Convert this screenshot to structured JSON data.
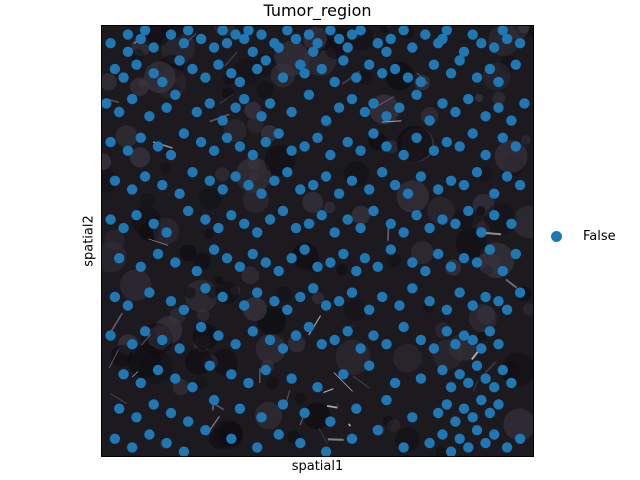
{
  "chart_data": {
    "type": "scatter",
    "title": "Tumor_region",
    "xlabel": "spatial1",
    "ylabel": "spatial2",
    "xlim": [
      0,
      100
    ],
    "ylim": [
      0,
      100
    ],
    "grid": false,
    "axis_ticks": false,
    "background": "tissue image (dark, black/purple with bright white fibers)",
    "legend": {
      "position": "right",
      "entries": [
        "False"
      ]
    },
    "series": [
      {
        "name": "False",
        "color": "#1f77b4",
        "x": [
          2,
          6,
          6,
          9,
          10,
          12,
          16,
          19,
          20,
          23,
          26,
          28,
          29,
          31,
          33,
          34,
          35,
          37,
          40,
          41,
          43,
          45,
          48,
          49,
          50,
          53,
          55,
          57,
          58,
          60,
          64,
          66,
          67,
          70,
          72,
          75,
          78,
          79,
          80,
          84,
          86,
          88,
          91,
          93,
          94,
          97,
          3,
          5,
          8,
          12,
          14,
          18,
          21,
          24,
          27,
          30,
          32,
          36,
          38,
          42,
          46,
          47,
          51,
          54,
          56,
          59,
          62,
          65,
          68,
          71,
          74,
          77,
          81,
          83,
          87,
          90,
          92,
          96,
          1,
          4,
          7,
          11,
          15,
          17,
          22,
          25,
          28,
          31,
          33,
          37,
          39,
          44,
          48,
          52,
          55,
          58,
          61,
          63,
          66,
          69,
          73,
          76,
          79,
          82,
          85,
          89,
          92,
          95,
          98,
          2,
          6,
          9,
          13,
          16,
          19,
          23,
          26,
          29,
          32,
          35,
          38,
          41,
          44,
          47,
          50,
          53,
          57,
          60,
          63,
          66,
          70,
          73,
          77,
          80,
          83,
          86,
          89,
          93,
          96,
          3,
          7,
          10,
          14,
          18,
          21,
          25,
          28,
          31,
          34,
          37,
          40,
          43,
          46,
          49,
          52,
          55,
          58,
          62,
          65,
          68,
          71,
          74,
          78,
          81,
          84,
          87,
          91,
          94,
          97,
          2,
          5,
          8,
          12,
          15,
          20,
          24,
          27,
          30,
          33,
          36,
          39,
          42,
          45,
          48,
          51,
          54,
          57,
          60,
          63,
          67,
          70,
          73,
          76,
          79,
          82,
          85,
          88,
          91,
          95,
          4,
          9,
          13,
          17,
          22,
          26,
          29,
          32,
          35,
          38,
          41,
          44,
          47,
          50,
          53,
          56,
          59,
          61,
          64,
          67,
          72,
          75,
          78,
          81,
          84,
          87,
          90,
          93,
          96,
          3,
          6,
          11,
          16,
          19,
          24,
          28,
          33,
          36,
          40,
          43,
          46,
          49,
          52,
          55,
          58,
          62,
          65,
          69,
          72,
          76,
          80,
          83,
          86,
          89,
          92,
          94,
          97,
          2,
          7,
          10,
          14,
          18,
          23,
          27,
          31,
          35,
          39,
          42,
          45,
          48,
          51,
          54,
          57,
          60,
          63,
          66,
          70,
          74,
          77,
          80,
          82,
          84,
          86,
          88,
          90,
          92,
          5,
          9,
          13,
          17,
          21,
          25,
          30,
          34,
          38,
          44,
          50,
          56,
          62,
          68,
          74,
          79,
          81,
          83,
          85,
          87,
          89,
          91,
          93,
          95,
          4,
          8,
          12,
          16,
          20,
          26,
          32,
          37,
          42,
          47,
          53,
          59,
          66,
          72,
          78,
          80,
          82,
          84,
          86,
          88,
          90,
          92,
          3,
          7,
          11,
          15,
          19,
          24,
          30,
          36,
          41,
          46,
          52,
          58,
          64,
          70,
          76,
          79,
          81,
          83,
          85,
          87,
          89,
          91,
          94,
          97
        ],
        "y": [
          96,
          98,
          94,
          97,
          99,
          95,
          98,
          96,
          99,
          97,
          95,
          99,
          96,
          98,
          97,
          99,
          94,
          98,
          96,
          95,
          99,
          97,
          98,
          94,
          96,
          99,
          97,
          95,
          98,
          99,
          96,
          94,
          97,
          99,
          95,
          98,
          96,
          97,
          99,
          94,
          98,
          96,
          95,
          99,
          97,
          96,
          90,
          88,
          91,
          89,
          87,
          92,
          90,
          88,
          91,
          89,
          87,
          90,
          92,
          88,
          91,
          89,
          90,
          87,
          92,
          88,
          91,
          89,
          90,
          88,
          87,
          91,
          89,
          92,
          88,
          90,
          87,
          91,
          82,
          80,
          83,
          79,
          81,
          84,
          80,
          82,
          78,
          81,
          83,
          79,
          82,
          80,
          84,
          78,
          81,
          83,
          80,
          82,
          79,
          81,
          84,
          78,
          82,
          80,
          83,
          79,
          81,
          78,
          82,
          73,
          71,
          74,
          72,
          70,
          75,
          73,
          71,
          74,
          72,
          70,
          73,
          75,
          71,
          72,
          74,
          70,
          73,
          71,
          75,
          72,
          70,
          74,
          71,
          73,
          72,
          75,
          70,
          74,
          72,
          64,
          62,
          65,
          63,
          61,
          66,
          64,
          62,
          65,
          63,
          61,
          64,
          66,
          62,
          63,
          65,
          61,
          64,
          62,
          66,
          63,
          61,
          65,
          62,
          64,
          63,
          66,
          61,
          65,
          63,
          55,
          53,
          56,
          54,
          52,
          57,
          55,
          53,
          56,
          54,
          52,
          55,
          57,
          53,
          54,
          56,
          52,
          55,
          53,
          57,
          54,
          52,
          56,
          53,
          55,
          54,
          57,
          52,
          56,
          54,
          46,
          44,
          47,
          45,
          43,
          48,
          46,
          44,
          47,
          45,
          43,
          46,
          48,
          44,
          45,
          47,
          43,
          46,
          44,
          48,
          45,
          43,
          47,
          44,
          46,
          45,
          48,
          43,
          47,
          37,
          35,
          38,
          36,
          34,
          39,
          37,
          35,
          38,
          36,
          34,
          37,
          39,
          35,
          36,
          38,
          34,
          37,
          35,
          39,
          36,
          34,
          38,
          35,
          37,
          36,
          34,
          38,
          28,
          26,
          29,
          27,
          25,
          30,
          28,
          26,
          29,
          27,
          25,
          28,
          30,
          26,
          27,
          29,
          25,
          28,
          26,
          30,
          27,
          25,
          29,
          26,
          28,
          27,
          25,
          29,
          26,
          19,
          17,
          20,
          18,
          16,
          21,
          19,
          17,
          20,
          18,
          16,
          19,
          21,
          17,
          18,
          20,
          16,
          19,
          17,
          21,
          18,
          16,
          20,
          17,
          11,
          9,
          12,
          10,
          8,
          13,
          11,
          9,
          12,
          10,
          8,
          11,
          13,
          9,
          10,
          12,
          8,
          11,
          9,
          13,
          10,
          12,
          4,
          2,
          5,
          3,
          1,
          6,
          4,
          2,
          5,
          3,
          1,
          4,
          6,
          2,
          3,
          5,
          1,
          4,
          2,
          6,
          3,
          5,
          2,
          4
        ]
      }
    ]
  }
}
